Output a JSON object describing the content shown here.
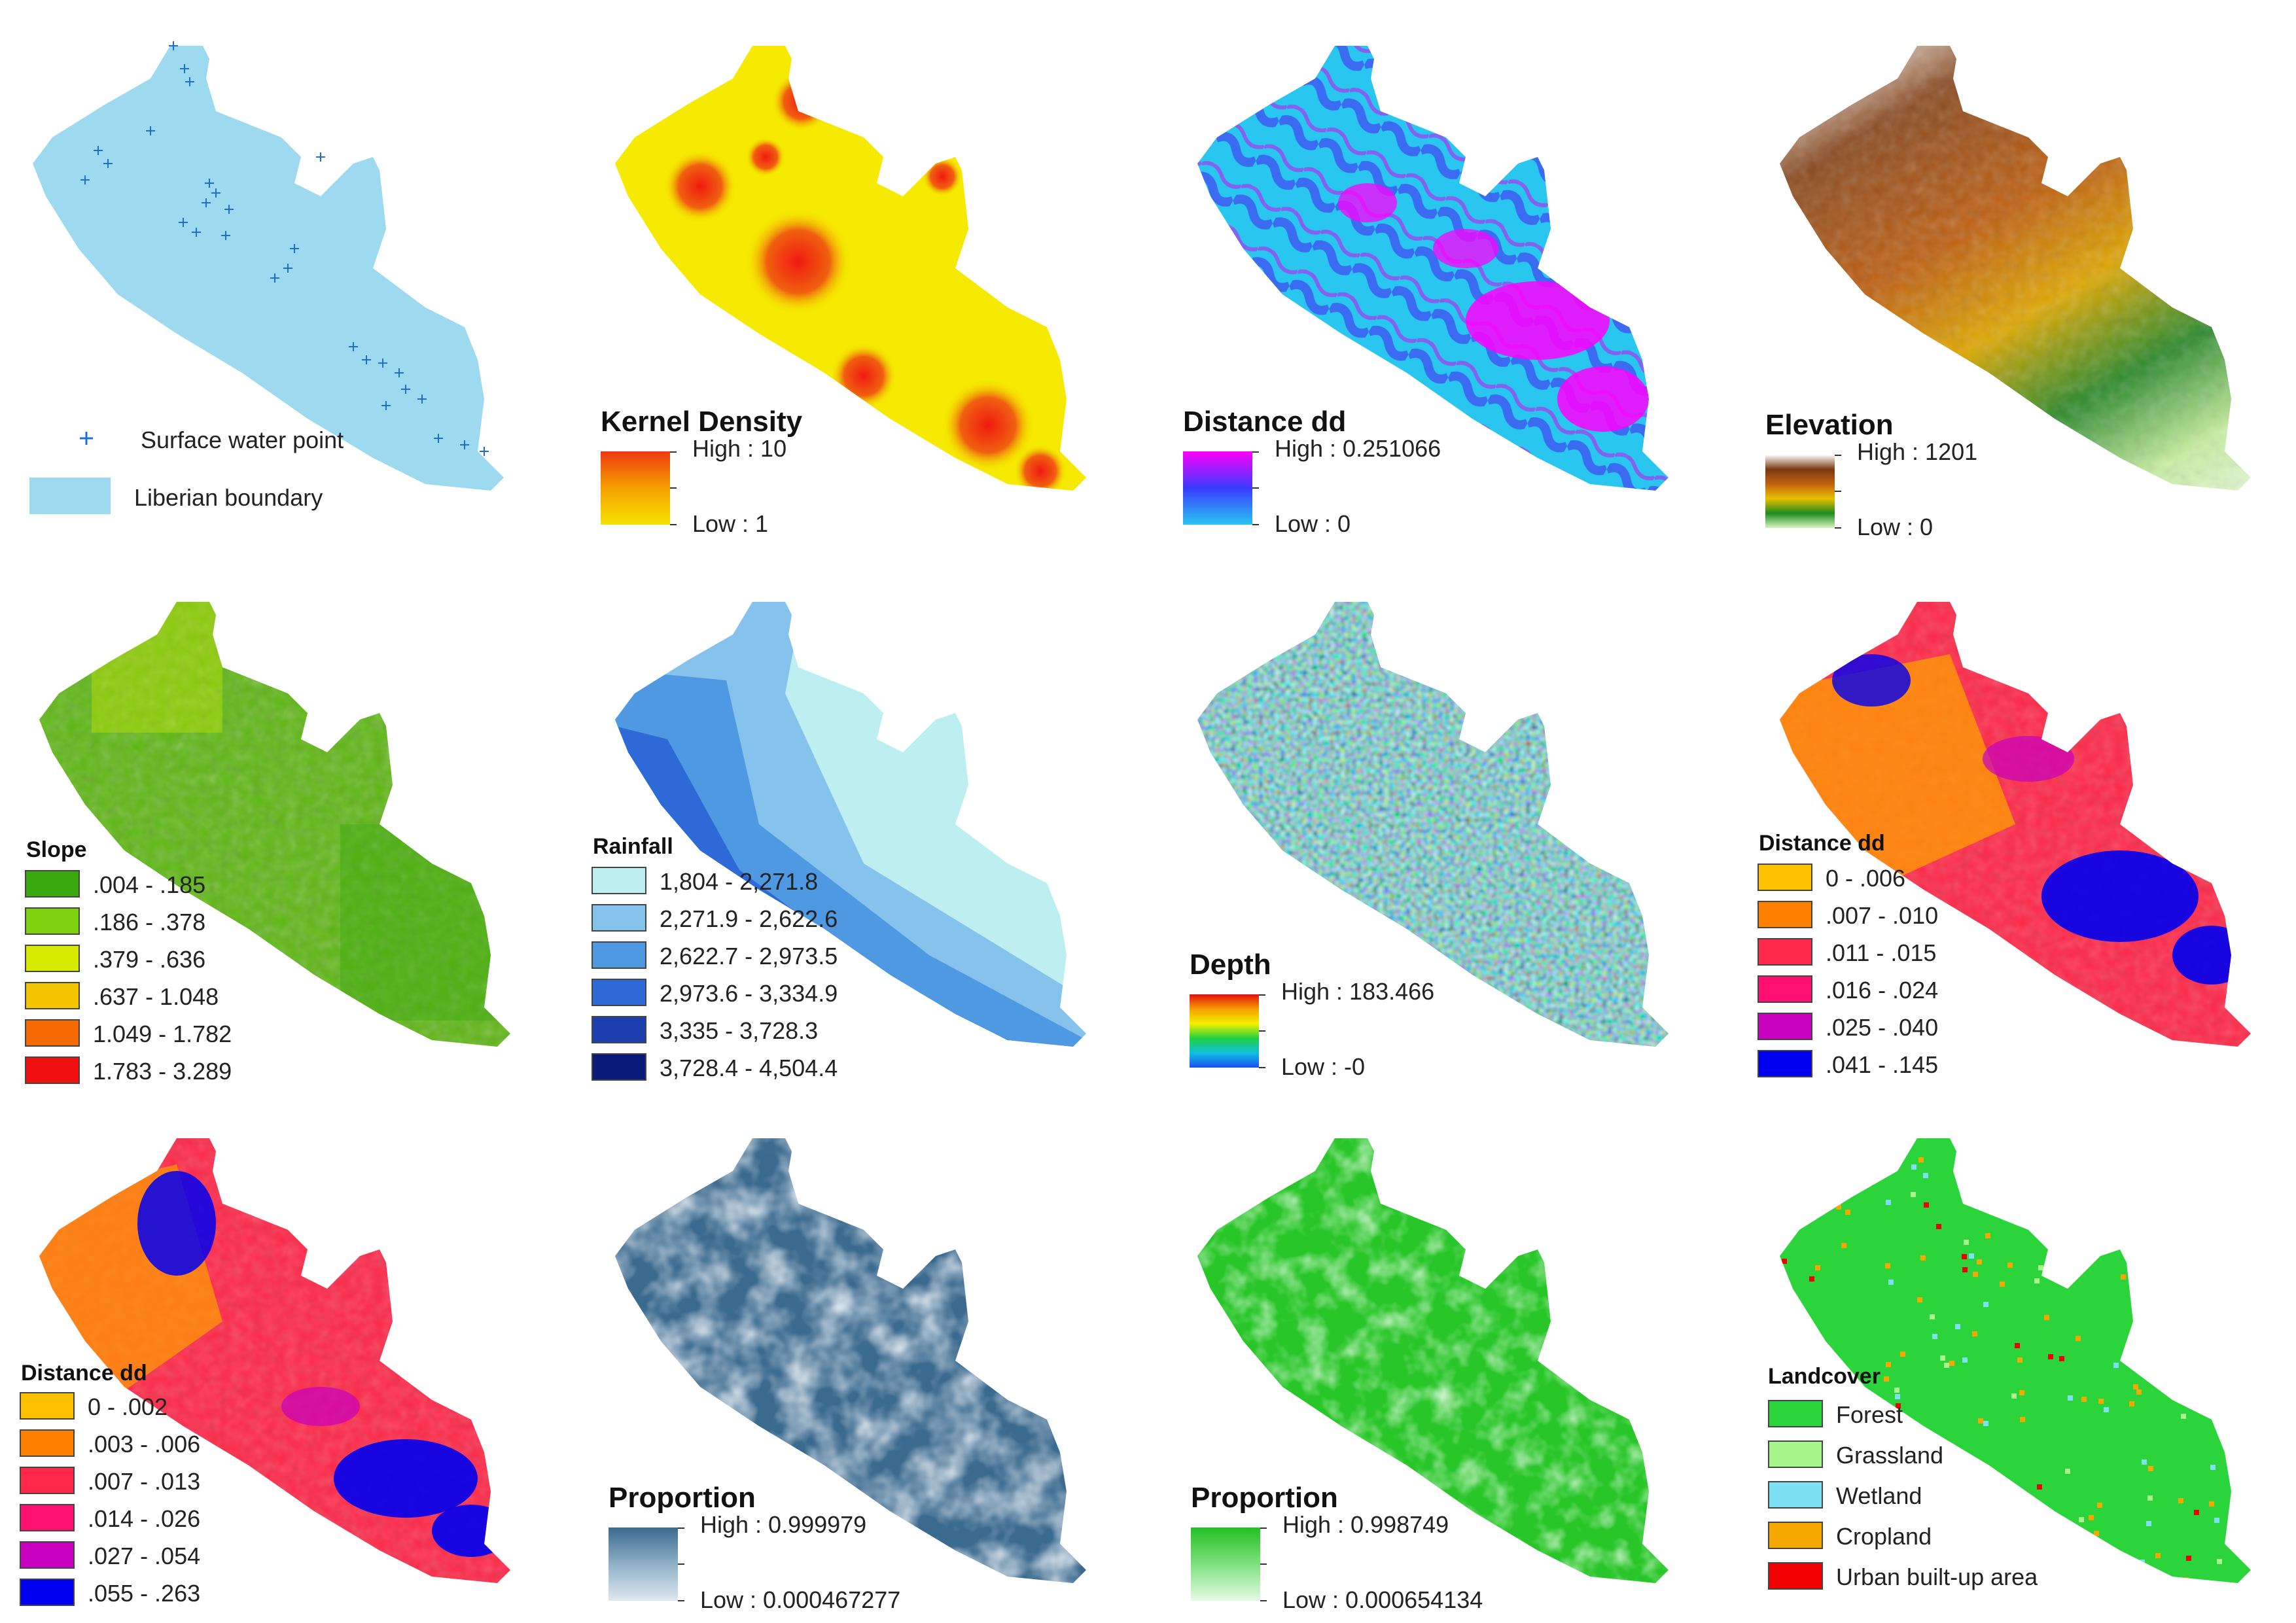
{
  "panels": [
    {
      "legend": {
        "items": [
          {
            "label": "Surface water point",
            "symbol": "plus",
            "color": "#1f6fd0"
          },
          {
            "label": "Liberian boundary",
            "symbol": "box",
            "color": "#9dd9ef"
          }
        ]
      }
    },
    {
      "legend": {
        "title": "Kernel Density",
        "high": "High : 10",
        "low": "Low : 1",
        "ramp": [
          "#f03a10",
          "#f5a000",
          "#f5e200"
        ]
      }
    },
    {
      "legend": {
        "title": "Distance dd",
        "high": "High : 0.251066",
        "low": "Low : 0",
        "ramp": [
          "#ff00ff",
          "#3a3aff",
          "#29c6f0"
        ]
      }
    },
    {
      "legend": {
        "title": "Elevation",
        "high": "High : 1201",
        "low": "Low : 0",
        "ramp": [
          "#ffffff",
          "#7a3a10",
          "#c06010",
          "#e9c000",
          "#1e8a1e",
          "#d8f5c0"
        ]
      }
    },
    {
      "legend": {
        "title": "Slope",
        "classes": [
          {
            "label": ".004 - .185",
            "color": "#3aa80f"
          },
          {
            "label": ".186 - .378",
            "color": "#7ed10f"
          },
          {
            "label": ".379 - .636",
            "color": "#d6ea00"
          },
          {
            "label": ".637 - 1.048",
            "color": "#f5c400"
          },
          {
            "label": "1.049 - 1.782",
            "color": "#f56a00"
          },
          {
            "label": "1.783 - 3.289",
            "color": "#f01010"
          }
        ]
      }
    },
    {
      "legend": {
        "title": "Rainfall",
        "classes": [
          {
            "label": "1,804 - 2,271.8",
            "color": "#bdeef0"
          },
          {
            "label": "2,271.9 - 2,622.6",
            "color": "#86c3ec"
          },
          {
            "label": "2,622.7 - 2,973.5",
            "color": "#4f99e2"
          },
          {
            "label": "2,973.6 - 3,334.9",
            "color": "#2d6ad8"
          },
          {
            "label": "3,335 - 3,728.3",
            "color": "#1b3fb0"
          },
          {
            "label": "3,728.4 - 4,504.4",
            "color": "#0a1a7a"
          }
        ]
      }
    },
    {
      "legend": {
        "title": "Depth",
        "high": "High : 183.466",
        "low": "Low : -0",
        "ramp": [
          "#e01010",
          "#f5a000",
          "#f5f000",
          "#20d040",
          "#10c0e0",
          "#1a50f0"
        ]
      }
    },
    {
      "legend": {
        "title": "Distance dd",
        "classes": [
          {
            "label": "0 - .006",
            "color": "#ffc000"
          },
          {
            "label": ".007 - .010",
            "color": "#ff8000"
          },
          {
            "label": ".011 - .015",
            "color": "#ff2848"
          },
          {
            "label": ".016 - .024",
            "color": "#ff1070"
          },
          {
            "label": ".025 - .040",
            "color": "#c800c0"
          },
          {
            "label": ".041 - .145",
            "color": "#0000f0"
          }
        ]
      }
    },
    {
      "legend": {
        "title": "Distance dd",
        "classes": [
          {
            "label": "0 - .002",
            "color": "#ffc000"
          },
          {
            "label": ".003 - .006",
            "color": "#ff8000"
          },
          {
            "label": ".007 - .013",
            "color": "#ff2848"
          },
          {
            "label": ".014 - .026",
            "color": "#ff1070"
          },
          {
            "label": ".027 - .054",
            "color": "#c800c0"
          },
          {
            "label": ".055 - .263",
            "color": "#0000f0"
          }
        ]
      }
    },
    {
      "legend": {
        "title": "Proportion",
        "high": "High : 0.999979",
        "low": "Low : 0.000467277",
        "ramp": [
          "#3b6a8f",
          "#8fb0c8",
          "#dfe8ef"
        ]
      }
    },
    {
      "legend": {
        "title": "Proportion",
        "high": "High : 0.998749",
        "low": "Low : 0.000654134",
        "ramp": [
          "#22c022",
          "#7fe07f",
          "#e5fae5"
        ]
      }
    },
    {
      "legend": {
        "title": "Landcover",
        "classes": [
          {
            "label": "Forest",
            "color": "#2ad43a"
          },
          {
            "label": "Grassland",
            "color": "#a8f58c"
          },
          {
            "label": "Wetland",
            "color": "#7fe0f5"
          },
          {
            "label": "Cropland",
            "color": "#f5a800"
          },
          {
            "label": "Urban built-up area",
            "color": "#f00000"
          }
        ]
      }
    }
  ]
}
